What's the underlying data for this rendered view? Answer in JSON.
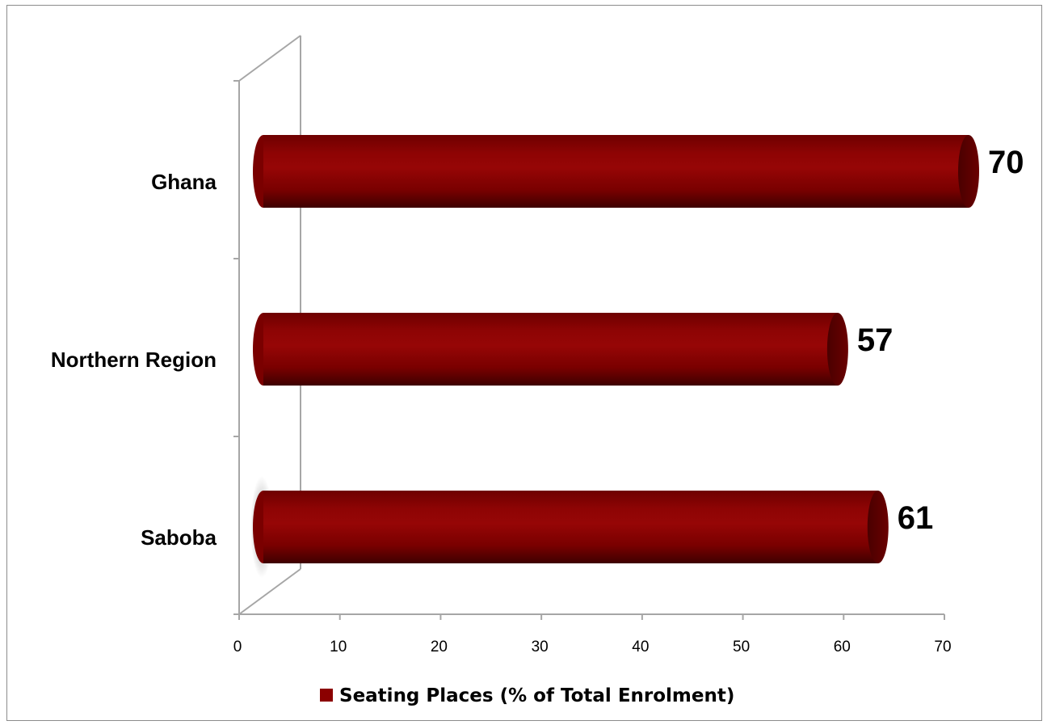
{
  "chart_data": {
    "type": "bar",
    "orientation": "horizontal",
    "style": "3d-cylinder",
    "categories": [
      "Ghana",
      "Northern Region",
      "Saboba"
    ],
    "series": [
      {
        "name": "Seating Places (% of Total Enrolment)",
        "values": [
          70,
          57,
          61
        ]
      }
    ],
    "data_labels": [
      "70",
      "57",
      "61"
    ],
    "xticks": [
      "0",
      "10",
      "20",
      "30",
      "40",
      "50",
      "60",
      "70"
    ],
    "xlim": [
      0,
      70
    ],
    "legend_position": "bottom",
    "grid": false,
    "colors": {
      "bar": "#8b0000",
      "bar_cap": "#5a0000"
    }
  }
}
